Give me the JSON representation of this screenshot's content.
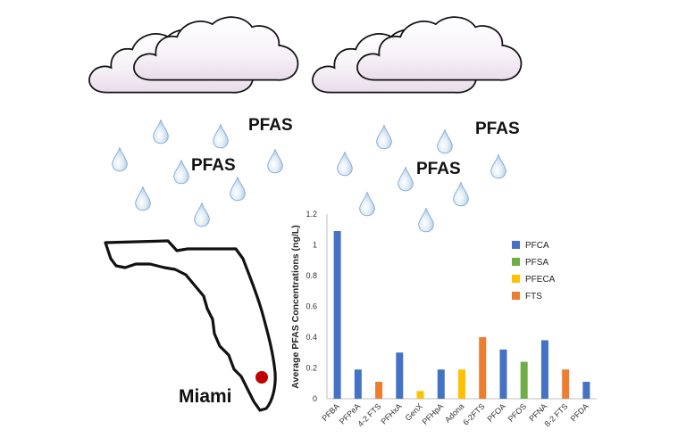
{
  "illustration": {
    "pfas_labels": [
      "PFAS",
      "PFAS",
      "PFAS",
      "PFAS"
    ],
    "city": "Miami"
  },
  "colors": {
    "PFCA": "#4472c4",
    "PFSA": "#70ad47",
    "PFECA": "#ffc000",
    "FTS": "#ed7d31",
    "marker": "#c00000"
  },
  "chart_data": {
    "type": "bar",
    "title": "",
    "xlabel": "",
    "ylabel": "Average PFAS Concentrations (ng/L)",
    "ylim": [
      0,
      1.2
    ],
    "yticks": [
      "0",
      "0.2",
      "0.4",
      "0.6",
      "0.8",
      "1",
      "1.2"
    ],
    "grid": false,
    "legend_position": "upper-right",
    "legend": [
      "PFCA",
      "PFSA",
      "PFECA",
      "FTS"
    ],
    "categories": [
      "PFBA",
      "PFPeA",
      "4-2 FTS",
      "PFHxA",
      "GenX",
      "PFHpA",
      "Adona",
      "6-2FTS",
      "PFOA",
      "PFOS",
      "PFNA",
      "8-2 FTS",
      "PFDA"
    ],
    "values": [
      1.09,
      0.19,
      0.11,
      0.3,
      0.05,
      0.19,
      0.19,
      0.4,
      0.32,
      0.24,
      0.38,
      0.19,
      0.11
    ],
    "groups": [
      "PFCA",
      "PFCA",
      "FTS",
      "PFCA",
      "PFECA",
      "PFCA",
      "PFECA",
      "FTS",
      "PFCA",
      "PFSA",
      "PFCA",
      "FTS",
      "PFCA"
    ]
  }
}
